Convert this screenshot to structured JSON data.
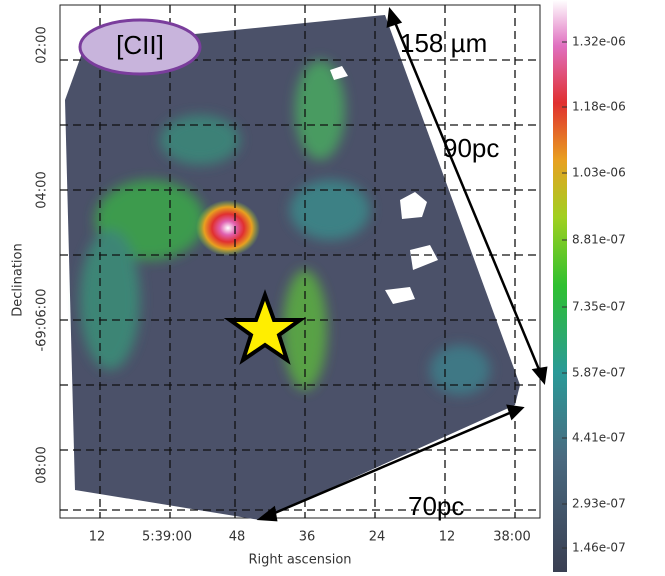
{
  "badge": "[CII]",
  "wavelength": "158 µm",
  "scale_labels": [
    "90pc",
    "70pc"
  ],
  "x_axis": {
    "label": "Right ascension",
    "ticks": [
      "12",
      "5:39:00",
      "48",
      "36",
      "24",
      "12",
      "38:00"
    ]
  },
  "y_axis": {
    "label": "Declination",
    "ticks": [
      "02:00",
      "04:00",
      "-69:06:00",
      "08:00"
    ]
  },
  "colorbar": {
    "ticks": [
      "1.32e-06",
      "1.18e-06",
      "1.03e-06",
      "8.81e-07",
      "7.35e-07",
      "5.87e-07",
      "4.41e-07",
      "2.93e-07",
      "1.46e-07"
    ]
  }
}
